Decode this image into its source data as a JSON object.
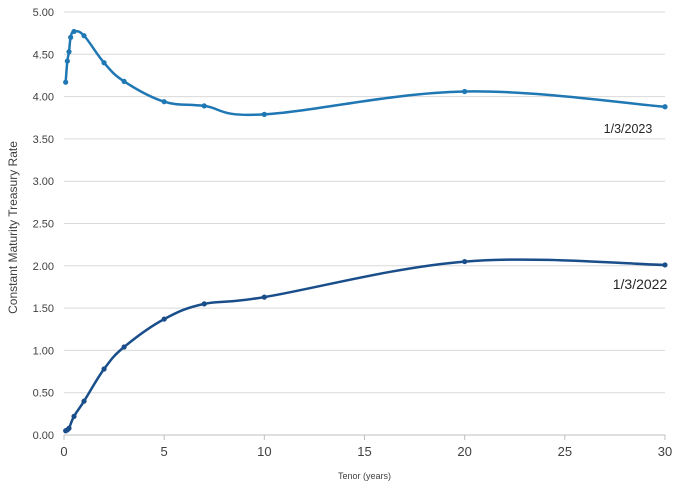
{
  "chart_data": {
    "type": "line",
    "title": "",
    "xlabel": "Tenor (years)",
    "ylabel": "Constant Maturity Treasury Rate",
    "xlim": [
      0,
      30
    ],
    "ylim": [
      0,
      5
    ],
    "x_ticks": [
      "0",
      "5",
      "10",
      "15",
      "20",
      "25",
      "30"
    ],
    "y_ticks": [
      "0.00",
      "0.50",
      "1.00",
      "1.50",
      "2.00",
      "2.50",
      "3.00",
      "3.50",
      "4.00",
      "4.50",
      "5.00"
    ],
    "grid": "horizontal",
    "series": [
      {
        "name": "1/3/2023",
        "color": "#1f77b4",
        "x": [
          0.083,
          0.167,
          0.25,
          0.333,
          0.5,
          1,
          2,
          3,
          5,
          7,
          10,
          20,
          30
        ],
        "values": [
          4.17,
          4.42,
          4.53,
          4.7,
          4.77,
          4.72,
          4.4,
          4.18,
          3.94,
          3.89,
          3.79,
          4.06,
          3.88
        ]
      },
      {
        "name": "1/3/2022",
        "color": "#1a4e8a",
        "x": [
          0.083,
          0.167,
          0.25,
          0.5,
          1,
          2,
          3,
          5,
          7,
          10,
          20,
          30
        ],
        "values": [
          0.05,
          0.06,
          0.08,
          0.22,
          0.4,
          0.78,
          1.04,
          1.37,
          1.55,
          1.63,
          2.05,
          2.01
        ]
      }
    ]
  }
}
